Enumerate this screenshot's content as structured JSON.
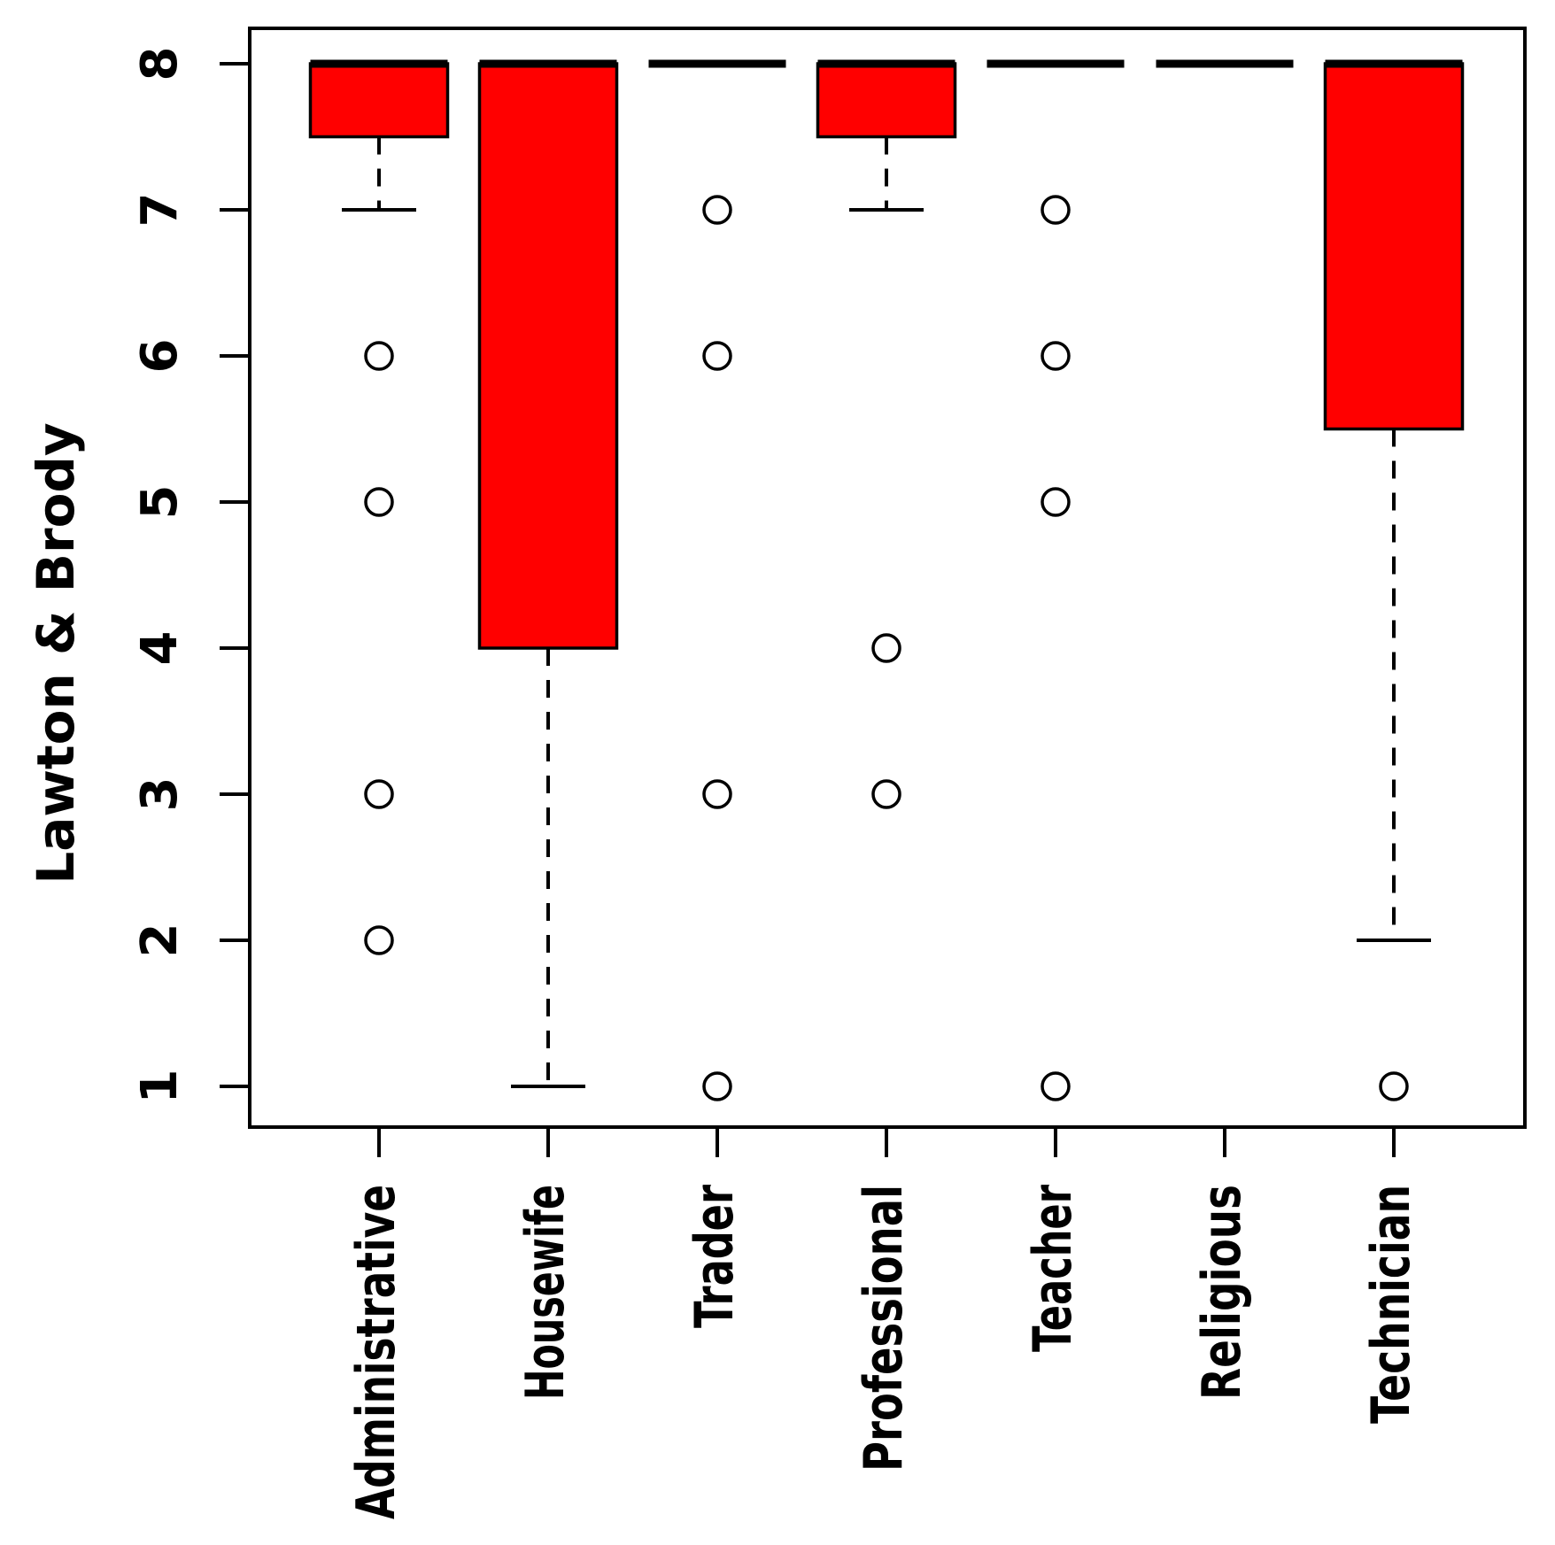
{
  "chart_data": {
    "type": "boxplot",
    "title": "",
    "xlabel": "",
    "ylabel": "Lawton & Brody",
    "ylim": [
      1,
      8
    ],
    "yticks": [
      "1",
      "2",
      "3",
      "4",
      "5",
      "6",
      "7",
      "8"
    ],
    "grid": "off",
    "legend": "none",
    "categories": [
      "Administrative",
      "Housewife",
      "Trader",
      "Professional",
      "Teacher",
      "Religious",
      "Technician"
    ],
    "series": [
      {
        "name": "Administrative",
        "median": 8,
        "q1": 7.5,
        "q3": 8,
        "whisker_low": 7,
        "whisker_high": 8,
        "outliers": [
          6,
          5,
          3,
          2
        ]
      },
      {
        "name": "Housewife",
        "median": 8,
        "q1": 4,
        "q3": 8,
        "whisker_low": 1,
        "whisker_high": 8,
        "outliers": []
      },
      {
        "name": "Trader",
        "median": 8,
        "q1": 8,
        "q3": 8,
        "whisker_low": 8,
        "whisker_high": 8,
        "outliers": [
          7,
          6,
          3,
          1
        ]
      },
      {
        "name": "Professional",
        "median": 8,
        "q1": 7.5,
        "q3": 8,
        "whisker_low": 7,
        "whisker_high": 8,
        "outliers": [
          4,
          3
        ]
      },
      {
        "name": "Teacher",
        "median": 8,
        "q1": 8,
        "q3": 8,
        "whisker_low": 8,
        "whisker_high": 8,
        "outliers": [
          7,
          6,
          5,
          1
        ]
      },
      {
        "name": "Religious",
        "median": 8,
        "q1": 8,
        "q3": 8,
        "whisker_low": 8,
        "whisker_high": 8,
        "outliers": []
      },
      {
        "name": "Technician",
        "median": 8,
        "q1": 5.5,
        "q3": 8,
        "whisker_low": 2,
        "whisker_high": 8,
        "outliers": [
          1
        ]
      }
    ],
    "colors": {
      "box_fill": "#ff0000",
      "line": "#000000",
      "background": "#ffffff"
    }
  }
}
